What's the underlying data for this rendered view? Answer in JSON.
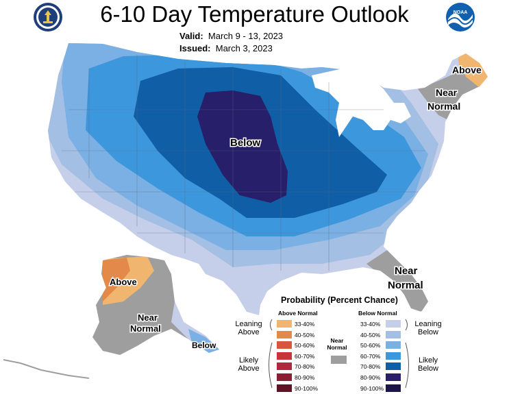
{
  "title": "6-10 Day Temperature Outlook",
  "valid_label": "Valid:",
  "valid_value": "March 9 - 13, 2023",
  "issued_label": "Issued:",
  "issued_value": "March 3, 2023",
  "map_labels": {
    "below_center": "Below",
    "above_ne": "Above",
    "near_normal_ne_1": "Near",
    "near_normal_ne_2": "Normal",
    "near_normal_fl_1": "Near",
    "near_normal_fl_2": "Normal",
    "above_ak": "Above",
    "near_normal_ak_1": "Near",
    "near_normal_ak_2": "Normal",
    "below_ak": "Below"
  },
  "legend": {
    "title": "Probability (Percent Chance)",
    "above_header": "Above Normal",
    "below_header": "Below Normal",
    "near_normal_1": "Near",
    "near_normal_2": "Normal",
    "leaning_above_1": "Leaning",
    "leaning_above_2": "Above",
    "likely_above_1": "Likely",
    "likely_above_2": "Above",
    "leaning_below_1": "Leaning",
    "leaning_below_2": "Below",
    "likely_below_1": "Likely",
    "likely_below_2": "Below",
    "ranges": [
      "33-40%",
      "40-50%",
      "50-60%",
      "60-70%",
      "70-80%",
      "80-90%",
      "90-100%"
    ],
    "above_colors": [
      "#f0b56e",
      "#e38a4a",
      "#d8563c",
      "#c9343a",
      "#b0283e",
      "#8a1e32",
      "#5e1424"
    ],
    "below_colors": [
      "#c6cfe9",
      "#a3bfe3",
      "#7ab0e3",
      "#3d97dc",
      "#0f5ea6",
      "#271f6a",
      "#1a1747"
    ],
    "near_normal_color": "#9e9e9e"
  },
  "colors": {
    "below_33_40": "#c6cfe9",
    "below_40_50": "#a3bfe3",
    "below_50_60": "#7ab0e3",
    "below_60_70": "#3d97dc",
    "below_70_80": "#0f5ea6",
    "below_80_90": "#271f6a",
    "above_33_40": "#f0b56e",
    "above_40_50": "#e38a4a",
    "near_normal": "#9e9e9e"
  },
  "icons": [
    "doc-seal-icon",
    "noaa-logo-icon"
  ]
}
